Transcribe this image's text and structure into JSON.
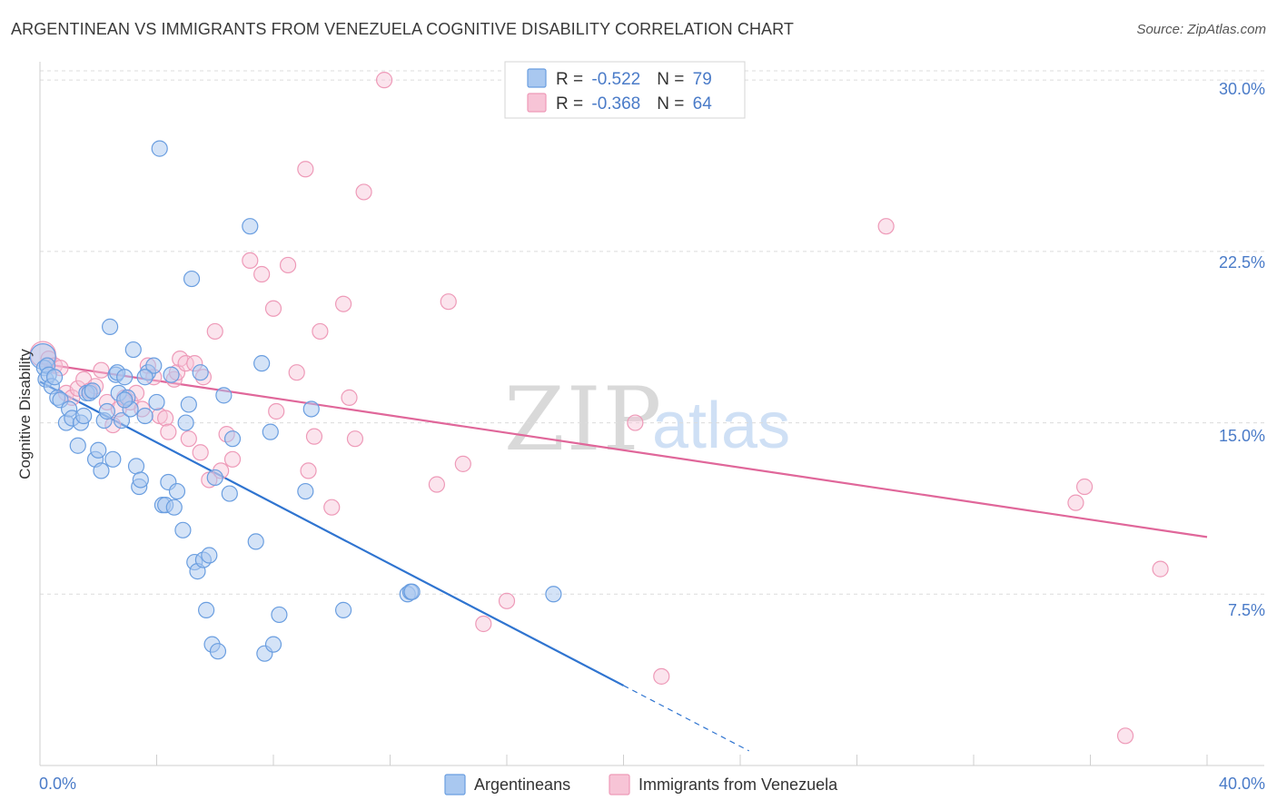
{
  "title": "ARGENTINEAN VS IMMIGRANTS FROM VENEZUELA COGNITIVE DISABILITY CORRELATION CHART",
  "source": "Source: ZipAtlas.com",
  "watermark": {
    "zip": "ZIP",
    "atlas": "atlas"
  },
  "colors": {
    "argentineans_fill": "#a9c8f0",
    "argentineans_stroke": "#6a9ee0",
    "argentineans_line": "#2f74d0",
    "venezuela_fill": "#f7c4d6",
    "venezuela_stroke": "#ee9ab8",
    "venezuela_line": "#e0679a",
    "grid": "#dcdcdc",
    "tick_label": "#4a7bc8"
  },
  "legend": {
    "row1": {
      "r_label": "R = ",
      "r_value": "-0.522",
      "n_label": "N = ",
      "n_value": "79"
    },
    "row2": {
      "r_label": "R = ",
      "r_value": "-0.368",
      "n_label": "N = ",
      "n_value": "64"
    }
  },
  "chart_data": {
    "type": "scatter",
    "title": "ARGENTINEAN VS IMMIGRANTS FROM VENEZUELA COGNITIVE DISABILITY CORRELATION CHART",
    "xlabel": "",
    "ylabel": "Cognitive Disability",
    "xlim": [
      0,
      40
    ],
    "ylim": [
      0,
      30.8
    ],
    "x_tick_labels": [
      "0.0%",
      "40.0%"
    ],
    "y_ticks": [
      7.5,
      15.0,
      22.5,
      30.0
    ],
    "y_tick_labels": [
      "7.5%",
      "15.0%",
      "22.5%",
      "30.0%"
    ],
    "grid": true,
    "legend_position": "top-center",
    "series": [
      {
        "name": "Argentineans",
        "r": -0.522,
        "n": 79,
        "trend": {
          "x0": 0.0,
          "y0": 16.8,
          "x1": 20.0,
          "y1": 3.5,
          "dashed_to_x": 24.3
        },
        "points": [
          [
            0.1,
            17.9
          ],
          [
            0.15,
            17.4
          ],
          [
            0.2,
            16.9
          ],
          [
            0.25,
            17.5
          ],
          [
            0.3,
            17.1
          ],
          [
            0.4,
            16.6
          ],
          [
            0.5,
            17.0
          ],
          [
            0.6,
            16.1
          ],
          [
            0.7,
            16.0
          ],
          [
            0.9,
            15.0
          ],
          [
            1.0,
            15.6
          ],
          [
            1.1,
            15.2
          ],
          [
            1.3,
            14.0
          ],
          [
            1.4,
            15.0
          ],
          [
            1.5,
            15.3
          ],
          [
            1.6,
            16.3
          ],
          [
            1.7,
            16.3
          ],
          [
            1.8,
            16.4
          ],
          [
            1.9,
            13.4
          ],
          [
            2.0,
            13.8
          ],
          [
            2.1,
            12.9
          ],
          [
            2.2,
            15.1
          ],
          [
            2.3,
            15.5
          ],
          [
            2.4,
            19.2
          ],
          [
            2.5,
            13.4
          ],
          [
            2.6,
            17.1
          ],
          [
            2.65,
            17.2
          ],
          [
            2.7,
            16.3
          ],
          [
            2.8,
            15.1
          ],
          [
            2.9,
            17.0
          ],
          [
            3.0,
            16.1
          ],
          [
            3.1,
            15.6
          ],
          [
            3.2,
            18.2
          ],
          [
            3.3,
            13.1
          ],
          [
            3.4,
            12.2
          ],
          [
            3.45,
            12.5
          ],
          [
            3.6,
            15.3
          ],
          [
            3.7,
            17.2
          ],
          [
            3.9,
            17.5
          ],
          [
            4.0,
            15.9
          ],
          [
            4.1,
            27.0
          ],
          [
            4.2,
            11.4
          ],
          [
            4.3,
            11.4
          ],
          [
            4.4,
            12.4
          ],
          [
            4.5,
            17.1
          ],
          [
            4.6,
            11.3
          ],
          [
            4.7,
            12.0
          ],
          [
            4.9,
            10.3
          ],
          [
            5.0,
            15.0
          ],
          [
            5.1,
            15.8
          ],
          [
            5.2,
            21.3
          ],
          [
            5.3,
            8.9
          ],
          [
            5.4,
            8.5
          ],
          [
            5.5,
            17.2
          ],
          [
            5.6,
            9.0
          ],
          [
            5.7,
            6.8
          ],
          [
            5.8,
            9.2
          ],
          [
            5.9,
            5.3
          ],
          [
            6.0,
            12.6
          ],
          [
            6.1,
            5.0
          ],
          [
            6.3,
            16.2
          ],
          [
            6.5,
            11.9
          ],
          [
            6.6,
            14.3
          ],
          [
            7.2,
            23.6
          ],
          [
            7.4,
            9.8
          ],
          [
            7.6,
            17.6
          ],
          [
            7.7,
            4.9
          ],
          [
            7.9,
            14.6
          ],
          [
            8.0,
            5.3
          ],
          [
            8.2,
            6.6
          ],
          [
            9.1,
            12.0
          ],
          [
            9.3,
            15.6
          ],
          [
            10.4,
            6.8
          ],
          [
            12.6,
            7.5
          ],
          [
            12.7,
            7.6
          ],
          [
            12.75,
            7.6
          ],
          [
            17.6,
            7.5
          ],
          [
            3.6,
            17.0
          ],
          [
            2.9,
            16.0
          ]
        ]
      },
      {
        "name": "Immigrants from Venezuela",
        "r": -0.368,
        "n": 64,
        "trend": {
          "x0": 0.0,
          "y0": 17.6,
          "x1": 40.0,
          "y1": 10.0
        },
        "points": [
          [
            0.1,
            18.0
          ],
          [
            0.3,
            17.8
          ],
          [
            0.5,
            17.5
          ],
          [
            0.7,
            17.4
          ],
          [
            0.9,
            16.3
          ],
          [
            1.1,
            16.1
          ],
          [
            1.3,
            16.5
          ],
          [
            1.5,
            16.9
          ],
          [
            1.7,
            16.4
          ],
          [
            1.9,
            16.6
          ],
          [
            2.1,
            17.3
          ],
          [
            2.3,
            15.9
          ],
          [
            2.5,
            14.9
          ],
          [
            2.7,
            15.6
          ],
          [
            2.9,
            16.1
          ],
          [
            3.1,
            15.9
          ],
          [
            3.3,
            16.3
          ],
          [
            3.5,
            15.6
          ],
          [
            3.7,
            17.5
          ],
          [
            3.9,
            17.0
          ],
          [
            4.1,
            15.3
          ],
          [
            4.3,
            15.2
          ],
          [
            4.4,
            14.6
          ],
          [
            4.6,
            16.9
          ],
          [
            4.7,
            17.2
          ],
          [
            4.8,
            17.8
          ],
          [
            5.0,
            17.6
          ],
          [
            5.1,
            14.3
          ],
          [
            5.3,
            17.6
          ],
          [
            5.5,
            13.7
          ],
          [
            5.6,
            17.0
          ],
          [
            5.8,
            12.5
          ],
          [
            6.0,
            19.0
          ],
          [
            6.2,
            12.9
          ],
          [
            6.4,
            14.5
          ],
          [
            6.6,
            13.4
          ],
          [
            7.2,
            22.1
          ],
          [
            7.6,
            21.5
          ],
          [
            8.0,
            20.0
          ],
          [
            8.1,
            15.5
          ],
          [
            8.5,
            21.9
          ],
          [
            8.8,
            17.2
          ],
          [
            9.1,
            26.1
          ],
          [
            9.2,
            12.9
          ],
          [
            9.4,
            14.4
          ],
          [
            9.6,
            19.0
          ],
          [
            10.0,
            11.3
          ],
          [
            10.4,
            20.2
          ],
          [
            10.6,
            16.1
          ],
          [
            10.8,
            14.3
          ],
          [
            11.1,
            25.1
          ],
          [
            11.8,
            30.0
          ],
          [
            13.6,
            12.3
          ],
          [
            14.0,
            20.3
          ],
          [
            14.5,
            13.2
          ],
          [
            15.2,
            6.2
          ],
          [
            16.0,
            7.2
          ],
          [
            20.4,
            15.0
          ],
          [
            21.3,
            3.9
          ],
          [
            29.0,
            23.6
          ],
          [
            35.5,
            11.5
          ],
          [
            35.8,
            12.2
          ],
          [
            37.2,
            1.3
          ],
          [
            38.4,
            8.6
          ]
        ]
      }
    ]
  }
}
